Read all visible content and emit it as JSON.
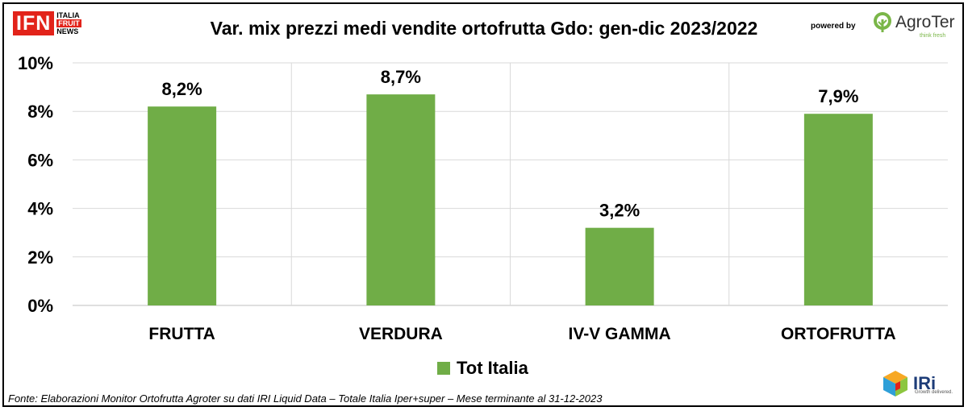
{
  "header": {
    "ifn_logo": {
      "main": "IFN",
      "line1": "ITALIA",
      "line2": "FRUIT",
      "line3": "NEWS"
    },
    "powered_by": "powered by",
    "agroter_logo": {
      "name": "AgroTer",
      "tagline": "think fresh"
    },
    "iri_logo": {
      "name": "IRi",
      "tagline": "Growth delivered."
    }
  },
  "chart_data": {
    "type": "bar",
    "title": "Var. mix prezzi medi vendite ortofrutta Gdo: gen-dic 2023/2022",
    "categories": [
      "FRUTTA",
      "VERDURA",
      "IV-V GAMMA",
      "ORTOFRUTTA"
    ],
    "series": [
      {
        "name": "Tot Italia",
        "values": [
          8.2,
          8.7,
          3.2,
          7.9
        ],
        "labels": [
          "8,2%",
          "8,7%",
          "3,2%",
          "7,9%"
        ]
      }
    ],
    "yticks": [
      "0%",
      "2%",
      "4%",
      "6%",
      "8%",
      "10%"
    ],
    "ylim": [
      0,
      10
    ],
    "grid": true,
    "legend_position": "bottom",
    "bar_color": "#70ad47"
  },
  "footer": {
    "source": "Fonte: Elaborazioni Monitor Ortofrutta Agroter su dati IRI Liquid Data – Totale Italia Iper+super – Mese terminante al 31-12-2023"
  }
}
